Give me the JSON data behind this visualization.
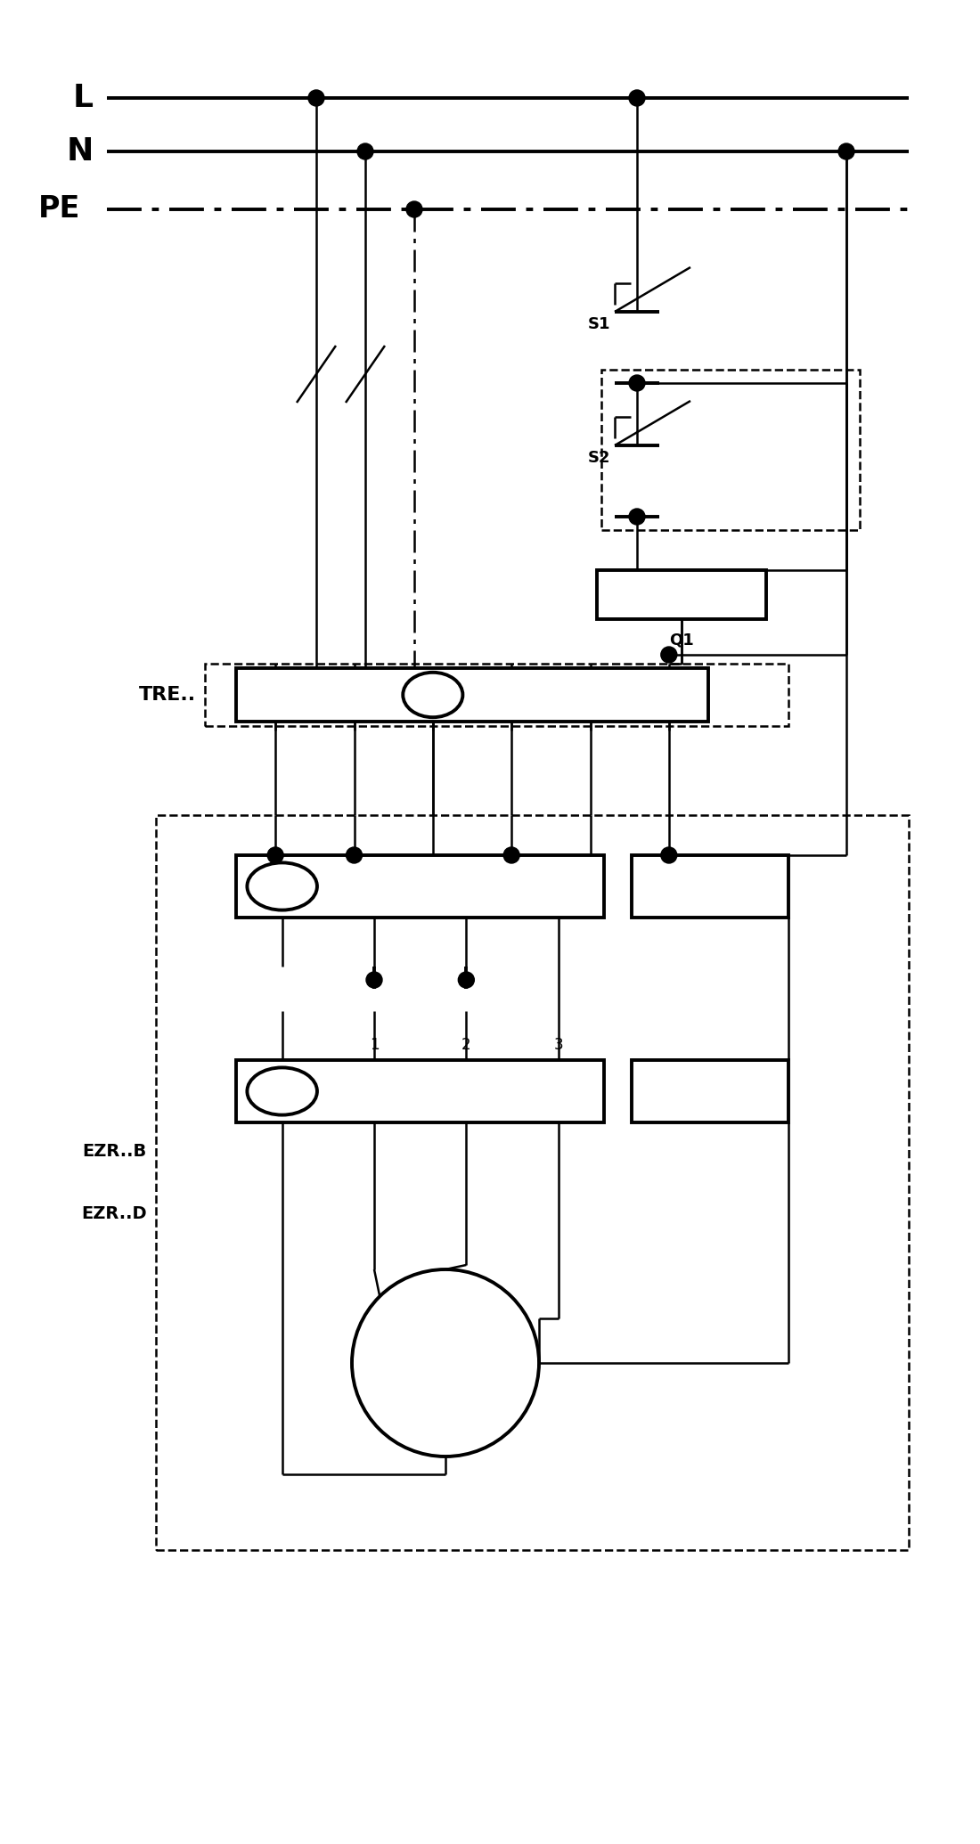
{
  "bg": "#ffffff",
  "lc": "#000000",
  "lw": 1.8,
  "lw2": 2.8,
  "fig_w": 11.0,
  "fig_h": 20.7,
  "xlim": [
    0,
    11
  ],
  "ylim": [
    0,
    20.7
  ],
  "y_L": 19.6,
  "y_N": 19.0,
  "y_PE": 18.35,
  "x_bus_l": 1.2,
  "x_bus_r": 10.2,
  "x_L1": 3.55,
  "x_N1": 4.1,
  "x_PE1": 4.65,
  "x_R1": 7.15,
  "x_R2": 9.5,
  "x_s1": 7.15,
  "y_s1_t": 17.2,
  "y_s1_b": 16.4,
  "x_s2": 7.15,
  "y_s2_t": 15.7,
  "y_s2_b": 14.9,
  "x_q1_l": 6.7,
  "x_q1_r": 8.6,
  "y_q1_t": 14.3,
  "y_q1_b": 13.75,
  "x_tre_l": 2.3,
  "x_tre_r": 8.85,
  "y_tre_t": 13.25,
  "y_tre_b": 12.55,
  "x_tb_l": 2.65,
  "x_tb_r": 7.95,
  "y_tb_t": 13.2,
  "y_tb_b": 12.6,
  "x_ezr_l": 1.75,
  "x_ezr_r": 10.2,
  "y_ezr_t": 11.55,
  "y_ezr_b": 3.3,
  "x_tb2_l": 2.65,
  "x_tb2_r": 8.85,
  "y_tb2_t": 11.1,
  "y_tb2_b": 10.4,
  "x_tb3_l": 2.65,
  "x_tb3_r": 8.85,
  "y_tb3_t": 8.8,
  "y_tb3_b": 8.1,
  "x_motor": 5.0,
  "y_motor": 5.4,
  "r_motor": 1.05
}
